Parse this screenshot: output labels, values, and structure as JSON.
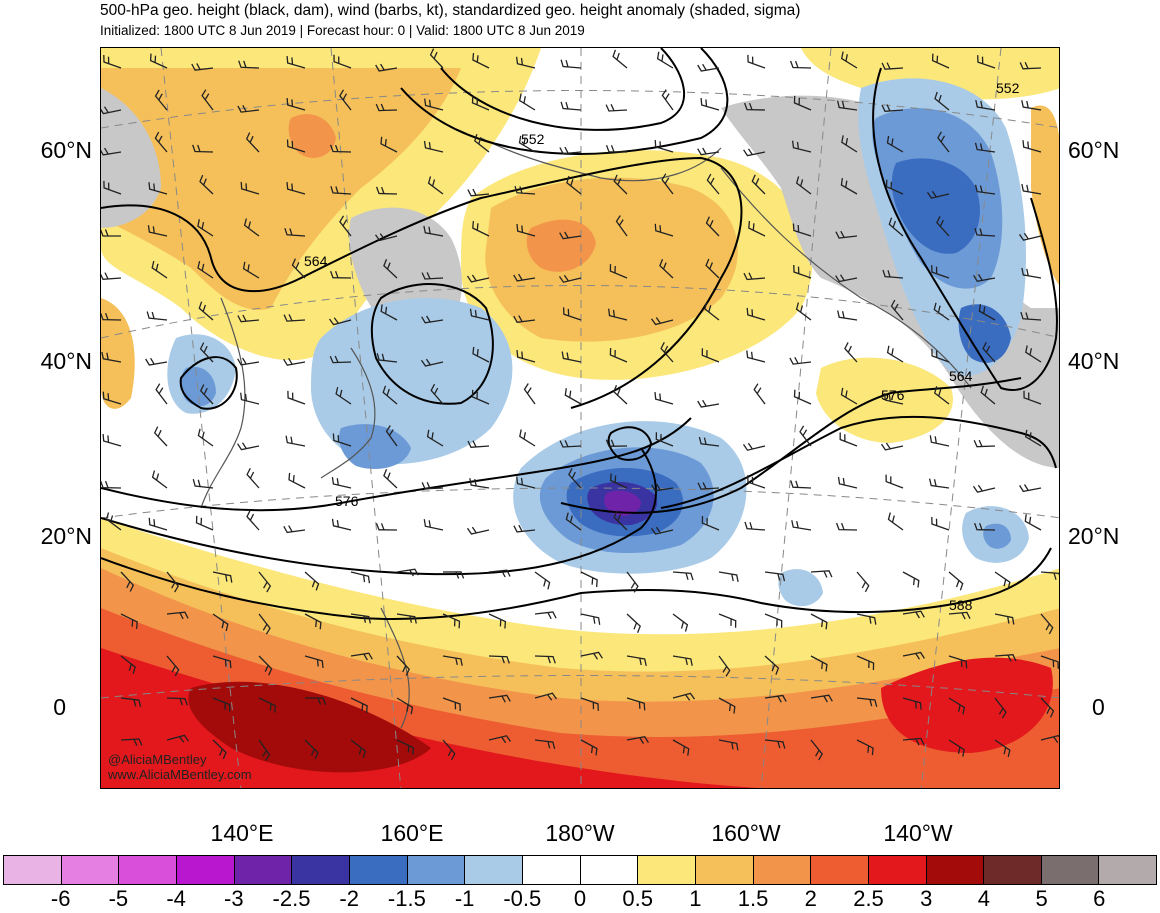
{
  "header": {
    "title": "500-hPa geo. height (black, dam), wind (barbs, kt), standardized geo. height anomaly (shaded, sigma)",
    "subtitle": "Initialized: 1800 UTC 8 Jun 2019 | Forecast hour: 0 | Valid: 1800 UTC 8 Jun 2019"
  },
  "map": {
    "lat_labels": [
      "60°N",
      "40°N",
      "20°N",
      "0"
    ],
    "lon_labels": [
      "140°E",
      "160°E",
      "180°W",
      "160°W",
      "140°W"
    ],
    "contour_labels": [
      "552",
      "552",
      "564",
      "564",
      "576",
      "576",
      "588"
    ],
    "credit_lines": [
      "@AliciaMBentley",
      "www.AliciaMBentley.com"
    ]
  },
  "colorbar": {
    "tick_labels": [
      "-6",
      "-5",
      "-4",
      "-3",
      "-2.5",
      "-2",
      "-1.5",
      "-1",
      "-0.5",
      "0",
      "0.5",
      "1",
      "1.5",
      "2",
      "2.5",
      "3",
      "4",
      "5",
      "6"
    ],
    "colors": [
      "#e9b3e5",
      "#e57fe2",
      "#d94fd9",
      "#b816cf",
      "#6f23a8",
      "#3a34a3",
      "#3a6cc0",
      "#6c9ad6",
      "#a9cbe8",
      "#ffffff",
      "#ffffff",
      "#fbe77a",
      "#f5c05a",
      "#f2954a",
      "#ee5d32",
      "#e3181c",
      "#a30a0a",
      "#6e2a28",
      "#7a6f6e",
      "#b3abab"
    ]
  }
}
